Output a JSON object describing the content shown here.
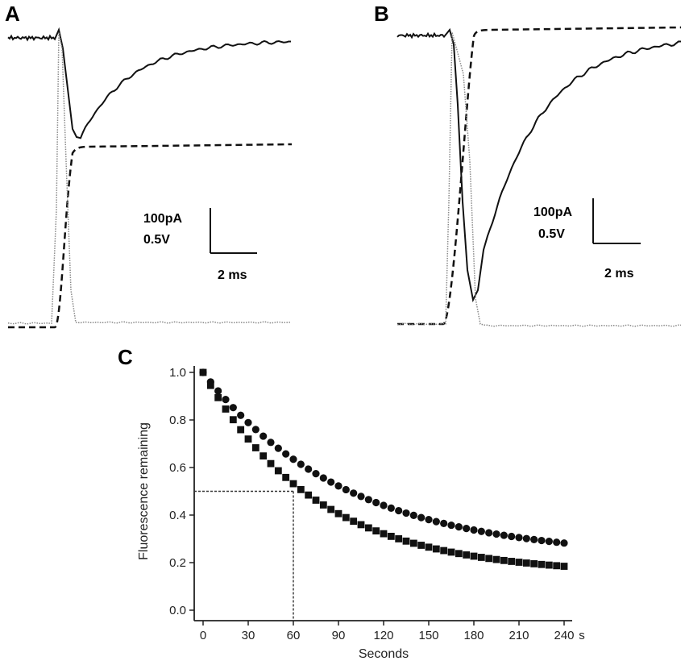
{
  "colors": {
    "ink": "#111111",
    "trace_gray": "#888888"
  },
  "panels": {
    "A": {
      "label": "A",
      "type": "line",
      "series": [
        {
          "name": "current (solid)",
          "style": "solid"
        },
        {
          "name": "voltage (dashed)",
          "style": "dashed"
        },
        {
          "name": "stimulus (dotted)",
          "style": "dotted"
        }
      ],
      "scale_bar": {
        "current": "100pA",
        "voltage": "0.5V",
        "time": "2 ms"
      }
    },
    "B": {
      "label": "B",
      "type": "line",
      "series": [
        {
          "name": "current (solid)",
          "style": "solid"
        },
        {
          "name": "voltage (dashed)",
          "style": "dashed"
        },
        {
          "name": "stimulus (dotted)",
          "style": "dotted"
        }
      ],
      "scale_bar": {
        "current": "100pA",
        "voltage": "0.5V",
        "time": "2 ms"
      }
    }
  },
  "chart_data": {
    "label": "C",
    "type": "scatter",
    "xlabel": "Seconds",
    "ylabel": "Fluorescence remaining",
    "x_unit_suffix": "s",
    "xlim": [
      0,
      245
    ],
    "ylim": [
      0,
      1.0
    ],
    "x_ticks": [
      0,
      30,
      60,
      90,
      120,
      150,
      180,
      210,
      240
    ],
    "y_ticks": [
      "0.0",
      "0.2",
      "0.4",
      "0.6",
      "0.8",
      "1.0"
    ],
    "interval_s": 5,
    "series": [
      {
        "name": "circles",
        "marker": "circle",
        "start_value": 1.0,
        "plateau": 0.22,
        "tau_s": 95,
        "end_value": 0.285
      },
      {
        "name": "squares",
        "marker": "square",
        "start_value": 1.0,
        "plateau": 0.15,
        "tau_s": 75,
        "end_value": 0.185
      }
    ],
    "reference_lines": {
      "y": 0.5,
      "x": 60
    }
  }
}
